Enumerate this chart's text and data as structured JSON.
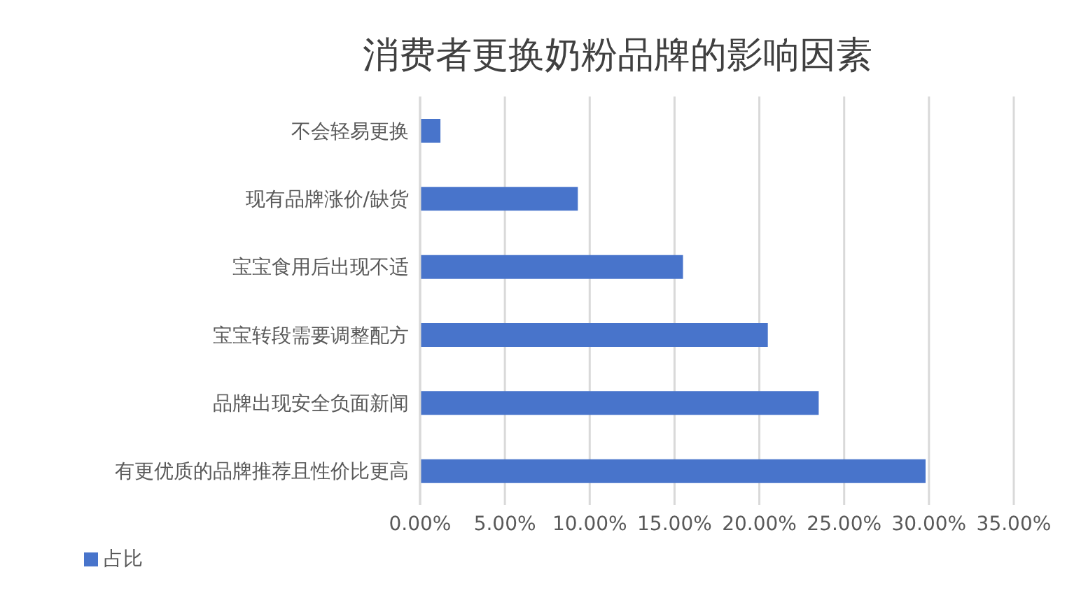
{
  "chart_data": {
    "type": "bar",
    "orientation": "horizontal",
    "title": "消费者更换奶粉品牌的影响因素",
    "categories": [
      "不会轻易更换",
      "现有品牌涨价/缺货",
      "宝宝食用后出现不适",
      "宝宝转段需要调整配方",
      "品牌出现安全负面新闻",
      "有更优质的品牌推荐且性价比更高"
    ],
    "series": [
      {
        "name": "占比",
        "color": "#4874cb",
        "values": [
          1.2,
          9.3,
          15.5,
          20.5,
          23.5,
          29.8
        ]
      }
    ],
    "xlim": [
      0,
      35
    ],
    "xticks": [
      {
        "value": 0,
        "label": "0.00%"
      },
      {
        "value": 5,
        "label": "5.00%"
      },
      {
        "value": 10,
        "label": "10.00%"
      },
      {
        "value": 15,
        "label": "15.00%"
      },
      {
        "value": 20,
        "label": "20.00%"
      },
      {
        "value": 25,
        "label": "25.00%"
      },
      {
        "value": 30,
        "label": "30.00%"
      },
      {
        "value": 35,
        "label": "35.00%"
      }
    ],
    "grid": "x",
    "legend": "bottom"
  }
}
